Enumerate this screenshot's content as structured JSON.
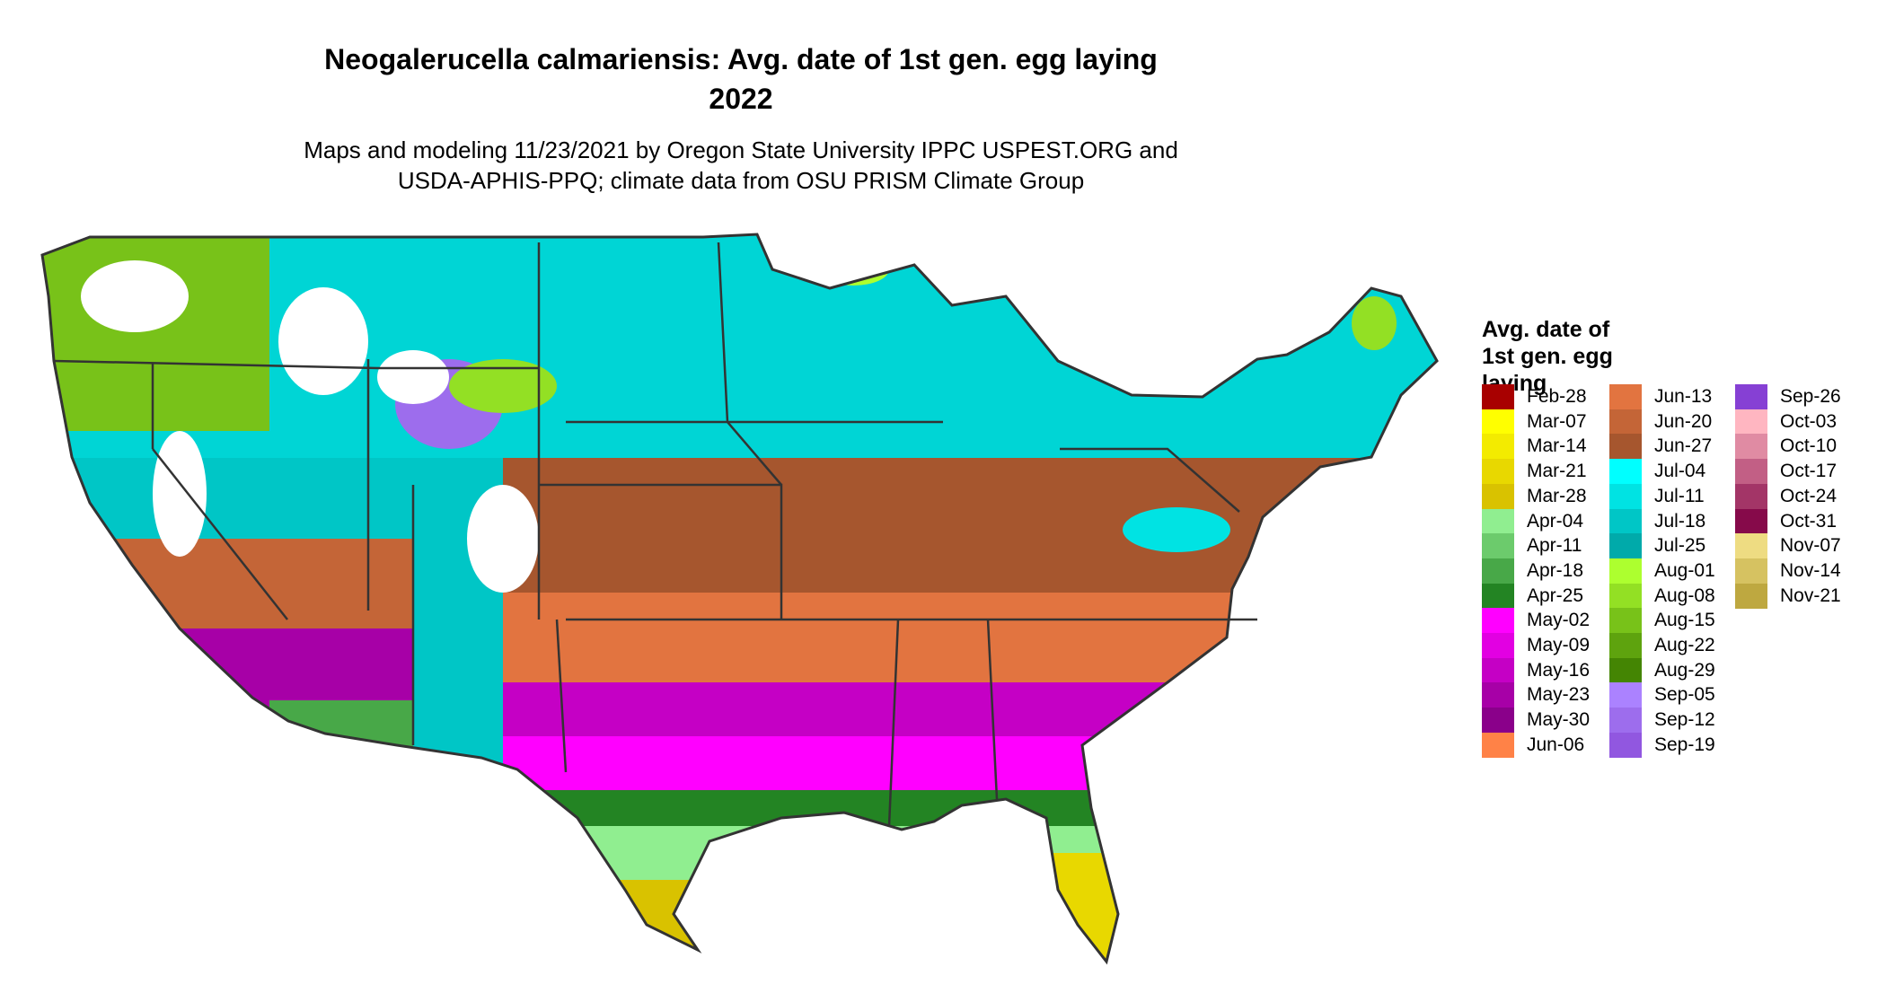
{
  "title_line1": "Neogalerucella calmariensis: Avg. date of 1st gen. egg laying",
  "title_line2": "2022",
  "subtitle_line1": "Maps and modeling 11/23/2021 by Oregon State University IPPC USPEST.ORG and",
  "subtitle_line2": "USDA-APHIS-PPQ; climate data from OSU PRISM Climate Group",
  "legend": {
    "title": [
      "Avg. date of",
      "1st gen. egg",
      "laying"
    ],
    "items": [
      {
        "label": "Feb-28",
        "color": "#A80000"
      },
      {
        "label": "Mar-07",
        "color": "#FFFF00"
      },
      {
        "label": "Mar-14",
        "color": "#F3EB00"
      },
      {
        "label": "Mar-21",
        "color": "#E8D800"
      },
      {
        "label": "Mar-28",
        "color": "#D9C200"
      },
      {
        "label": "Apr-04",
        "color": "#90EE90"
      },
      {
        "label": "Apr-11",
        "color": "#6CCB6C"
      },
      {
        "label": "Apr-18",
        "color": "#48A848"
      },
      {
        "label": "Apr-25",
        "color": "#238423"
      },
      {
        "label": "May-02",
        "color": "#FF00FF"
      },
      {
        "label": "May-09",
        "color": "#E200E2"
      },
      {
        "label": "May-16",
        "color": "#C500C5"
      },
      {
        "label": "May-23",
        "color": "#A700A7"
      },
      {
        "label": "May-30",
        "color": "#8A008A"
      },
      {
        "label": "Jun-06",
        "color": "#FF8247"
      },
      {
        "label": "Jun-13",
        "color": "#E27440"
      },
      {
        "label": "Jun-20",
        "color": "#C46537"
      },
      {
        "label": "Jun-27",
        "color": "#A6562E"
      },
      {
        "label": "Jul-04",
        "color": "#00FFFF"
      },
      {
        "label": "Jul-11",
        "color": "#00E3E3"
      },
      {
        "label": "Jul-18",
        "color": "#00C6C6"
      },
      {
        "label": "Jul-25",
        "color": "#00AAAA"
      },
      {
        "label": "Aug-01",
        "color": "#ADFF2F"
      },
      {
        "label": "Aug-08",
        "color": "#93E024"
      },
      {
        "label": "Aug-15",
        "color": "#78C219"
      },
      {
        "label": "Aug-22",
        "color": "#5EA30E"
      },
      {
        "label": "Aug-29",
        "color": "#448503"
      },
      {
        "label": "Sep-05",
        "color": "#AB82FF"
      },
      {
        "label": "Sep-12",
        "color": "#9D6DED"
      },
      {
        "label": "Sep-19",
        "color": "#9157E0"
      },
      {
        "label": "Sep-26",
        "color": "#8640D4"
      },
      {
        "label": "Oct-03",
        "color": "#FFB6C1"
      },
      {
        "label": "Oct-10",
        "color": "#E08BA3"
      },
      {
        "label": "Oct-17",
        "color": "#C25F85"
      },
      {
        "label": "Oct-24",
        "color": "#A33567"
      },
      {
        "label": "Oct-31",
        "color": "#860A4A"
      },
      {
        "label": "Nov-07",
        "color": "#EEDC82"
      },
      {
        "label": "Nov-14",
        "color": "#D6C261"
      },
      {
        "label": "Nov-21",
        "color": "#BEA840"
      }
    ]
  }
}
